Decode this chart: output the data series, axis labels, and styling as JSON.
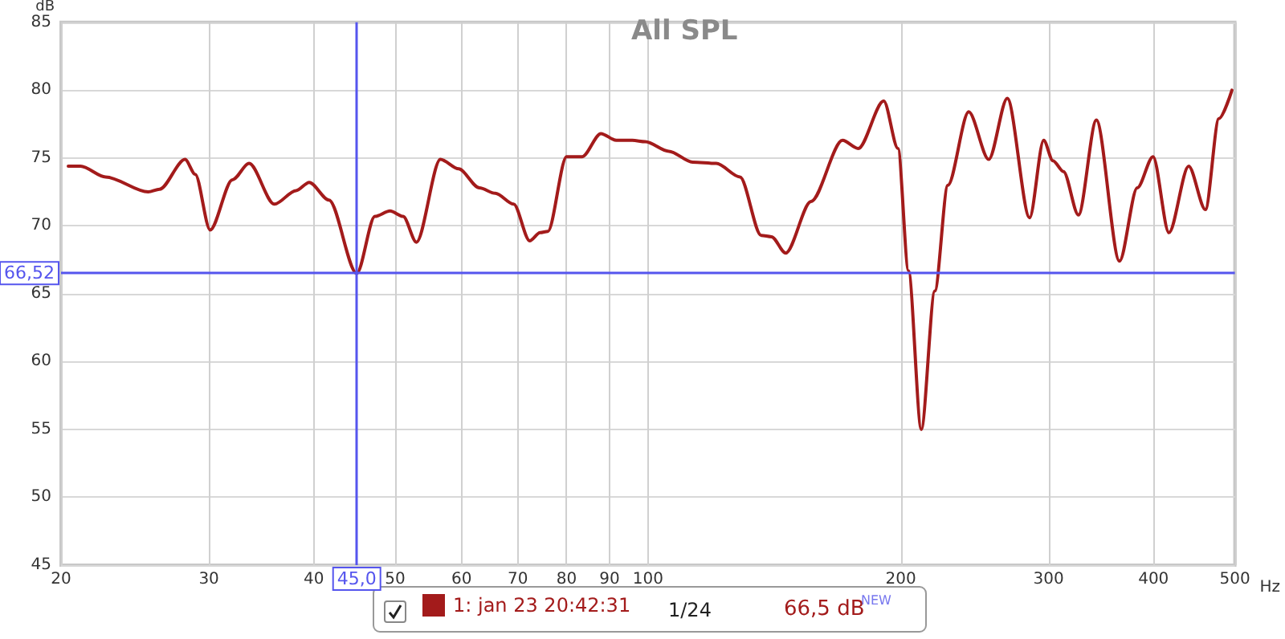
{
  "chart_data": {
    "type": "line",
    "title": "All SPL",
    "xlabel": "Hz",
    "ylabel": "dB",
    "x": [
      20.4,
      21.1,
      22.6,
      25.4,
      26.2,
      28.1,
      28.9,
      30.1,
      32.0,
      33.5,
      35.9,
      38.1,
      39.5,
      41.7,
      45,
      47.3,
      49.3,
      51.1,
      53.0,
      56.6,
      59.5,
      63.0,
      65.8,
      69.2,
      72.3,
      74.4,
      76.0,
      80.0,
      83.5,
      87.9,
      91.7,
      95.8,
      99.3,
      105.9,
      113.0,
      120.6,
      128.7,
      136.4,
      140.3,
      145.9,
      156.4,
      170.5,
      178.0,
      190.9,
      198.5,
      204.3,
      211.6,
      219.6,
      227.6,
      241.0,
      254.6,
      267.9,
      284.8,
      296.0,
      303.6,
      312.5,
      325.6,
      342.0,
      364.4,
      382.6,
      399.5,
      417.3,
      440.5,
      461.2,
      478.6,
      496.0
    ],
    "series": [
      {
        "name": "1: jan 23 20:42:31",
        "color": "#a31b1b",
        "values": [
          74.4,
          74.4,
          73.6,
          72.5,
          72.7,
          74.9,
          73.8,
          69.7,
          73.4,
          74.6,
          71.6,
          72.6,
          73.2,
          71.9,
          66.5,
          70.7,
          71.1,
          70.7,
          68.8,
          74.9,
          74.2,
          72.8,
          72.4,
          71.6,
          68.9,
          69.5,
          69.6,
          75.1,
          75.1,
          76.8,
          76.3,
          76.3,
          76.2,
          75.5,
          74.7,
          74.6,
          73.6,
          69.3,
          69.2,
          68.0,
          71.8,
          76.3,
          75.7,
          79.2,
          75.7,
          66.7,
          55.0,
          65.2,
          73.0,
          78.4,
          74.9,
          79.4,
          70.6,
          76.3,
          74.8,
          74.0,
          70.8,
          77.8,
          67.4,
          72.8,
          75.1,
          69.5,
          74.4,
          71.2,
          77.9,
          80.0
        ]
      }
    ],
    "log": "x",
    "xlim": [
      20,
      500
    ],
    "xticks": [
      20,
      30,
      40,
      50,
      60,
      70,
      80,
      90,
      100,
      200,
      300,
      400,
      500
    ],
    "ylim": [
      45,
      85
    ],
    "yticks": [
      45,
      50,
      55,
      60,
      65,
      70,
      75,
      80,
      85
    ],
    "grid": true,
    "legend": "bottom",
    "marker": "none",
    "line_style": "solid",
    "ref_lines": [
      {
        "axis": "x",
        "value": 45,
        "label": "45,0",
        "color": "#5555ee"
      },
      {
        "axis": "y",
        "value": 66.52,
        "label": "66,52",
        "color": "#5555ee"
      }
    ],
    "annotations": [
      "1/24",
      "66,5 dB",
      "NEW"
    ]
  }
}
